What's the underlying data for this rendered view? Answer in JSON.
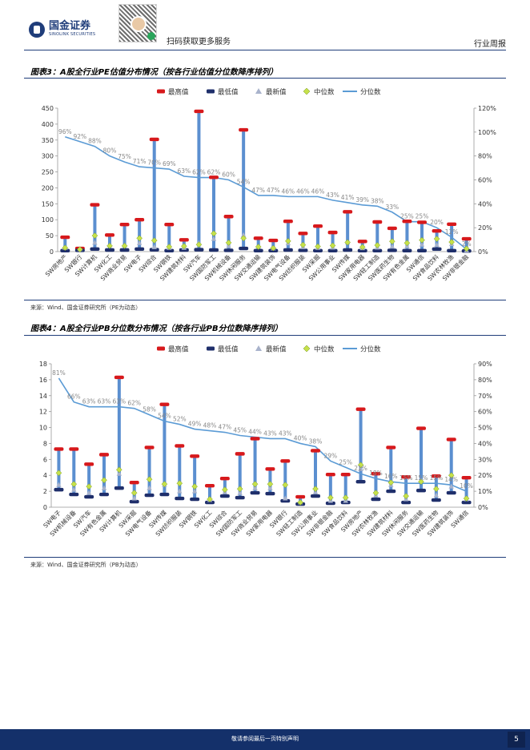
{
  "header": {
    "logo_cn": "国金证券",
    "logo_en": "SINOLINK SECURITIES",
    "scan_text": "扫码获取更多服务",
    "report_type": "行业周报"
  },
  "footer": {
    "disclaimer": "敬请参阅最后一页特别声明",
    "page": "5"
  },
  "chart_data": [
    {
      "type": "bar",
      "id": "pe",
      "title": "图表3：A股全行业PE估值分布情况（按各行业估值分位数降序排列）",
      "source": "来源：Wind、国金证券研究所（PE为动态）",
      "legend": [
        "最高值",
        "最低值",
        "最新值",
        "中位数",
        "分位数"
      ],
      "ylim_left": [
        0,
        450
      ],
      "yticks_left": [
        "0",
        "50",
        "100",
        "150",
        "200",
        "250",
        "300",
        "350",
        "400",
        "450"
      ],
      "ylim_right": [
        0,
        120
      ],
      "yticks_right": [
        "0%",
        "20%",
        "40%",
        "60%",
        "80%",
        "100%",
        "120%"
      ],
      "categories": [
        "SW房地产",
        "SW银行",
        "SW计算机",
        "SW化工",
        "SW商业贸易",
        "SW电子",
        "SW综合",
        "SW钢铁",
        "SW建筑材料",
        "SW汽车",
        "SW国防军工",
        "SW机械设备",
        "SW休闲服务",
        "SW交通运输",
        "SW建筑装饰",
        "SW电气设备",
        "SW纺织服装",
        "SW采掘",
        "SW公用事业",
        "SW传媒",
        "SW家用电器",
        "SW轻工制造",
        "SW医药生物",
        "SW有色金属",
        "SW通信",
        "SW食品饮料",
        "SW农林牧渔",
        "SW非银金融"
      ],
      "max": [
        45,
        10,
        147,
        52,
        85,
        100,
        352,
        85,
        37,
        440,
        233,
        110,
        382,
        42,
        35,
        95,
        57,
        80,
        60,
        125,
        32,
        93,
        73,
        95,
        92,
        65,
        86,
        40
      ],
      "min": [
        3,
        4,
        8,
        5,
        5,
        8,
        6,
        3,
        5,
        6,
        5,
        4,
        10,
        3,
        3,
        5,
        4,
        3,
        3,
        5,
        3,
        3,
        4,
        3,
        3,
        8,
        3,
        2
      ],
      "latest": [
        12,
        8,
        28,
        20,
        20,
        27,
        14,
        12,
        12,
        27,
        40,
        18,
        52,
        15,
        10,
        26,
        14,
        12,
        13,
        29,
        11,
        13,
        16,
        17,
        22,
        21,
        24,
        4
      ],
      "median": [
        12,
        7,
        50,
        18,
        18,
        42,
        35,
        15,
        17,
        22,
        57,
        28,
        42,
        15,
        11,
        33,
        21,
        16,
        19,
        29,
        14,
        20,
        32,
        27,
        36,
        40,
        30,
        9
      ],
      "percentile": [
        96,
        92,
        88,
        80,
        75,
        71,
        70,
        69,
        63,
        62,
        62,
        60,
        54,
        47,
        47,
        46,
        46,
        46,
        43,
        41,
        39,
        38,
        33,
        25,
        25,
        20,
        12,
        2
      ],
      "percentile_labels": [
        "96%",
        "92%",
        "88%",
        "80%",
        "75%",
        "71%",
        "70%",
        "69%",
        "63%",
        "62%",
        "62%",
        "60%",
        "54%",
        "47%",
        "47%",
        "46%",
        "46%",
        "46%",
        "43%",
        "41%",
        "39%",
        "38%",
        "33%",
        "25%",
        "25%",
        "20%",
        "12%",
        "2%"
      ]
    },
    {
      "type": "bar",
      "id": "pb",
      "title": "图表4：A股全行业PB分位数分布情况（按各行业PB分位数降序排列）",
      "source": "来源：Wind、国金证券研究所（PB为动态）",
      "legend": [
        "最高值",
        "最低值",
        "最新值",
        "中位数",
        "分位数"
      ],
      "ylim_left": [
        0,
        18
      ],
      "yticks_left": [
        "0",
        "2",
        "4",
        "6",
        "8",
        "10",
        "12",
        "14",
        "16",
        "18"
      ],
      "ylim_right": [
        0,
        90
      ],
      "yticks_right": [
        "0%",
        "10%",
        "20%",
        "30%",
        "40%",
        "50%",
        "60%",
        "70%",
        "80%",
        "90%"
      ],
      "categories": [
        "SW电子",
        "SW机械设备",
        "SW汽车",
        "SW有色金属",
        "SW计算机",
        "SW采掘",
        "SW电气设备",
        "SW传媒",
        "SW纺织服装",
        "SW钢铁",
        "SW化工",
        "SW综合",
        "SW国防军工",
        "SW商业贸易",
        "SW家用电器",
        "SW银行",
        "SW轻工制造",
        "SW公用事业",
        "SW非银金融",
        "SW食品饮料",
        "SW房地产",
        "SW农林牧渔",
        "SW建筑材料",
        "SW休闲服务",
        "SW交通运输",
        "SW医药生物",
        "SW建筑装饰",
        "SW通信"
      ],
      "max": [
        7.3,
        7.3,
        5.4,
        6.6,
        16.3,
        3.1,
        7.5,
        12.9,
        7.7,
        6.4,
        2.7,
        3.6,
        6.7,
        8.6,
        4.8,
        5.8,
        1.3,
        7.1,
        4.1,
        4.1,
        12.3,
        4.2,
        7.5,
        3.8,
        9.9,
        3.9,
        8.5,
        3.7
      ],
      "min": [
        2.2,
        1.6,
        1.3,
        1.6,
        2.4,
        0.7,
        1.5,
        1.6,
        1.1,
        1.0,
        0.6,
        1.4,
        1.2,
        1.8,
        1.7,
        0.8,
        0.4,
        1.4,
        0.5,
        0.6,
        3.2,
        1.0,
        2.0,
        0.6,
        2.1,
        0.9,
        1.8,
        0.6
      ],
      "latest": [
        2.8,
        2.2,
        1.8,
        2.4,
        4.2,
        1.1,
        2.4,
        2.8,
        2.0,
        2.0,
        0.9,
        1.9,
        1.8,
        2.4,
        2.4,
        1.1,
        0.6,
        1.9,
        0.8,
        0.8,
        4.8,
        1.5,
        2.8,
        1.0,
        3.4,
        1.5,
        2.6,
        1.0
      ],
      "median": [
        4.3,
        2.9,
        2.6,
        3.4,
        4.7,
        1.8,
        3.5,
        2.9,
        3.0,
        2.6,
        1.0,
        2.2,
        2.3,
        2.9,
        2.9,
        2.8,
        0.6,
        2.3,
        1.2,
        1.2,
        5.3,
        1.8,
        3.1,
        1.4,
        3.2,
        2.3,
        4.0,
        1.1
      ],
      "percentile": [
        81,
        66,
        63,
        63,
        63,
        62,
        58,
        54,
        52,
        49,
        48,
        47,
        45,
        44,
        43,
        43,
        40,
        38,
        29,
        25,
        21,
        18,
        16,
        15,
        15,
        15,
        14,
        10
      ],
      "percentile_labels": [
        "81%",
        "66%",
        "63%",
        "63%",
        "63%",
        "62%",
        "58%",
        "54%",
        "52%",
        "49%",
        "48%",
        "47%",
        "45%",
        "44%",
        "43%",
        "43%",
        "40%",
        "38%",
        "29%",
        "25%",
        "21%",
        "18%",
        "16%",
        "15%",
        "15%",
        "15%",
        "14%",
        "10%"
      ]
    }
  ],
  "colors": {
    "max": "#d7191c",
    "min": "#1f2f6b",
    "latest": "#a9b3cc",
    "median": "#c6e14a",
    "percentile": "#5b9bd5",
    "range_bar": "#5b8fd0",
    "navy": "#1f3d7a"
  }
}
